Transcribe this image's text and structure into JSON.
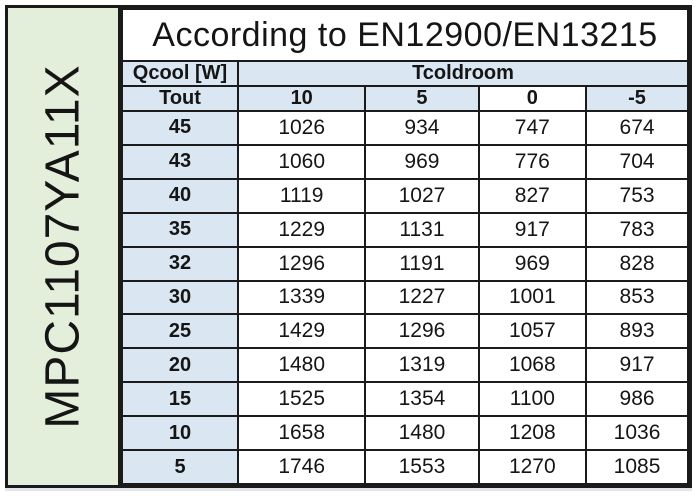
{
  "model": "MPC1107YA11X",
  "title": "According to EN12900/EN13215",
  "table": {
    "qcool_label": "Qcool [W]",
    "tcoldroom_label": "Tcoldroom",
    "tout_label": "Tout",
    "col_headers": [
      {
        "label": "10",
        "white_bg": false
      },
      {
        "label": "5",
        "white_bg": false
      },
      {
        "label": "0",
        "white_bg": true
      },
      {
        "label": "-5",
        "white_bg": false
      }
    ],
    "rows": [
      {
        "tout": "45",
        "values": [
          "1026",
          "934",
          "747",
          "674"
        ]
      },
      {
        "tout": "43",
        "values": [
          "1060",
          "969",
          "776",
          "704"
        ]
      },
      {
        "tout": "40",
        "values": [
          "1119",
          "1027",
          "827",
          "753"
        ]
      },
      {
        "tout": "35",
        "values": [
          "1229",
          "1131",
          "917",
          "783"
        ]
      },
      {
        "tout": "32",
        "values": [
          "1296",
          "1191",
          "969",
          "828"
        ]
      },
      {
        "tout": "30",
        "values": [
          "1339",
          "1227",
          "1001",
          "853"
        ]
      },
      {
        "tout": "25",
        "values": [
          "1429",
          "1296",
          "1057",
          "893"
        ]
      },
      {
        "tout": "20",
        "values": [
          "1480",
          "1319",
          "1068",
          "917"
        ]
      },
      {
        "tout": "15",
        "values": [
          "1525",
          "1354",
          "1100",
          "986"
        ]
      },
      {
        "tout": "10",
        "values": [
          "1658",
          "1480",
          "1208",
          "1036"
        ]
      },
      {
        "tout": "5",
        "values": [
          "1746",
          "1553",
          "1270",
          "1085"
        ]
      }
    ]
  },
  "colors": {
    "header_blue": "#dae7f3",
    "strip_green": "#e4efdb",
    "border_black": "#1b1b1b"
  }
}
